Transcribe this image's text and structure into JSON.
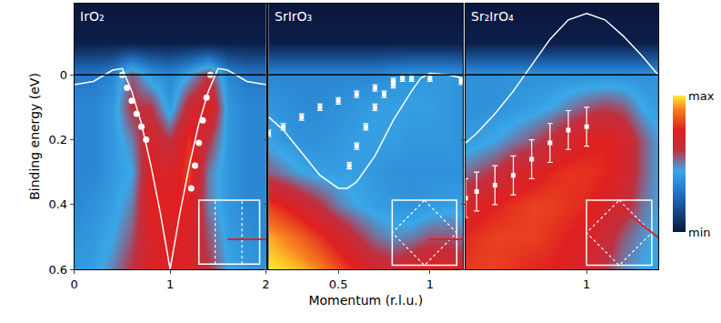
{
  "chart_data": [
    {
      "type": "heatmap",
      "title": "IrO₂",
      "ylabel": "Binding energy (eV)",
      "xlim": [
        0,
        2
      ],
      "xticks": [
        0,
        1,
        2
      ],
      "ylim": [
        0.6,
        -0.22
      ],
      "yticks": [
        0,
        0.2,
        0.4,
        0.6
      ],
      "hline": 0,
      "zlim": [
        0,
        1
      ],
      "heatmap": {
        "x": [
          0,
          0.2,
          0.4,
          0.6,
          0.8,
          1.0,
          1.2,
          1.4,
          1.6,
          1.8,
          2.0
        ],
        "y": [
          -0.2,
          -0.1,
          0,
          0.1,
          0.2,
          0.3,
          0.4,
          0.5,
          0.6
        ],
        "z": [
          [
            0,
            0,
            0,
            0,
            0,
            0,
            0,
            0,
            0,
            0,
            0
          ],
          [
            0.02,
            0.02,
            0.02,
            0.02,
            0.02,
            0.02,
            0.02,
            0.02,
            0.02,
            0.02,
            0.02
          ],
          [
            0.3,
            0.3,
            0.35,
            0.55,
            0.4,
            0.35,
            0.45,
            0.6,
            0.35,
            0.3,
            0.3
          ],
          [
            0.35,
            0.35,
            0.4,
            0.6,
            0.6,
            0.4,
            0.65,
            0.75,
            0.4,
            0.35,
            0.35
          ],
          [
            0.35,
            0.35,
            0.4,
            0.5,
            0.7,
            0.6,
            0.78,
            0.6,
            0.4,
            0.35,
            0.35
          ],
          [
            0.35,
            0.35,
            0.4,
            0.45,
            0.72,
            0.7,
            0.8,
            0.5,
            0.4,
            0.35,
            0.35
          ],
          [
            0.35,
            0.38,
            0.42,
            0.5,
            0.75,
            0.75,
            0.75,
            0.5,
            0.4,
            0.35,
            0.35
          ],
          [
            0.38,
            0.4,
            0.45,
            0.55,
            0.72,
            0.72,
            0.72,
            0.55,
            0.42,
            0.38,
            0.35
          ],
          [
            0.4,
            0.42,
            0.5,
            0.6,
            0.72,
            0.72,
            0.72,
            0.6,
            0.45,
            0.4,
            0.38
          ]
        ]
      },
      "series": [
        {
          "type": "line",
          "line_style": "solid",
          "color": "#ffffff",
          "x": [
            0,
            0.2,
            0.4,
            0.5,
            0.6,
            0.7,
            0.8,
            0.9,
            1.0,
            1.1,
            1.2,
            1.3,
            1.4,
            1.5,
            1.6,
            1.8,
            2.0
          ],
          "values": [
            0.03,
            0.02,
            -0.015,
            -0.02,
            0.05,
            0.15,
            0.28,
            0.43,
            0.6,
            0.43,
            0.28,
            0.15,
            0.05,
            -0.02,
            -0.015,
            0.02,
            0.03
          ]
        },
        {
          "type": "scatter",
          "marker": "circle",
          "color": "#ffffff",
          "x": [
            0.5,
            0.55,
            0.6,
            0.65,
            0.7,
            0.75
          ],
          "values": [
            0,
            0.04,
            0.08,
            0.12,
            0.16,
            0.2
          ]
        },
        {
          "type": "scatter",
          "marker": "circle",
          "color": "#ffffff",
          "x": [
            1.22,
            1.26,
            1.3,
            1.34,
            1.38,
            1.42
          ],
          "values": [
            0.35,
            0.28,
            0.21,
            0.14,
            0.07,
            0
          ]
        }
      ]
    },
    {
      "type": "heatmap",
      "title": "SrIrO₃",
      "xlabel": "Momentum (r.l.u.)",
      "tick_labels": "x",
      "xlim": [
        0.12,
        1.18
      ],
      "xticks": [
        0.5,
        1
      ],
      "ylim": [
        0.6,
        -0.22
      ],
      "yticks": [
        0,
        0.2,
        0.4,
        0.6
      ],
      "hline": 0,
      "zlim": [
        0,
        1
      ],
      "heatmap": {
        "x": [
          0.1,
          0.2,
          0.3,
          0.4,
          0.5,
          0.6,
          0.7,
          0.8,
          0.9,
          1.0,
          1.1,
          1.2
        ],
        "y": [
          -0.2,
          -0.1,
          0,
          0.1,
          0.2,
          0.3,
          0.4,
          0.5,
          0.6
        ],
        "z": [
          [
            0,
            0,
            0,
            0,
            0,
            0,
            0,
            0,
            0,
            0,
            0,
            0
          ],
          [
            0.02,
            0.02,
            0.02,
            0.02,
            0.02,
            0.02,
            0.02,
            0.02,
            0.02,
            0.02,
            0.02,
            0.02
          ],
          [
            0.35,
            0.35,
            0.35,
            0.35,
            0.35,
            0.35,
            0.35,
            0.38,
            0.4,
            0.4,
            0.4,
            0.38
          ],
          [
            0.4,
            0.38,
            0.36,
            0.36,
            0.38,
            0.4,
            0.42,
            0.42,
            0.42,
            0.42,
            0.4,
            0.38
          ],
          [
            0.45,
            0.4,
            0.38,
            0.38,
            0.4,
            0.42,
            0.42,
            0.42,
            0.4,
            0.4,
            0.4,
            0.38
          ],
          [
            0.55,
            0.5,
            0.45,
            0.42,
            0.42,
            0.42,
            0.4,
            0.38,
            0.38,
            0.38,
            0.38,
            0.38
          ],
          [
            0.8,
            0.75,
            0.68,
            0.6,
            0.5,
            0.45,
            0.42,
            0.4,
            0.38,
            0.4,
            0.42,
            0.42
          ],
          [
            0.95,
            0.9,
            0.85,
            0.78,
            0.7,
            0.6,
            0.52,
            0.48,
            0.5,
            0.55,
            0.55,
            0.5
          ],
          [
            1,
            0.98,
            0.95,
            0.9,
            0.82,
            0.75,
            0.68,
            0.65,
            0.7,
            0.75,
            0.72,
            0.65
          ]
        ]
      },
      "series": [
        {
          "type": "line",
          "line_style": "solid",
          "color": "#ffffff",
          "x": [
            0.12,
            0.2,
            0.3,
            0.4,
            0.5,
            0.55,
            0.6,
            0.7,
            0.8,
            0.9,
            0.95,
            1.0,
            1.1,
            1.18
          ],
          "values": [
            0.13,
            0.17,
            0.24,
            0.31,
            0.35,
            0.35,
            0.33,
            0.25,
            0.14,
            0.05,
            0.01,
            -0.005,
            0,
            0.01
          ]
        },
        {
          "type": "scatter",
          "marker": "square",
          "color": "#ffffff",
          "x": [
            0.12,
            0.2,
            0.3,
            0.4,
            0.5,
            0.6,
            0.7,
            0.8,
            0.9,
            1.0,
            1.17
          ],
          "values": [
            0.18,
            0.16,
            0.13,
            0.1,
            0.08,
            0.06,
            0.04,
            0.02,
            0.01,
            0.01,
            0.02
          ],
          "error": [
            0.01,
            0.01,
            0.01,
            0.01,
            0.01,
            0.01,
            0.01,
            0.01,
            0.01,
            0.01,
            0.01
          ]
        },
        {
          "type": "scatter",
          "marker": "square",
          "color": "#ffffff",
          "x": [
            0.56,
            0.6,
            0.65,
            0.7,
            0.75,
            0.8,
            0.85
          ],
          "values": [
            0.28,
            0.22,
            0.16,
            0.1,
            0.06,
            0.03,
            0.01
          ],
          "error": [
            0.01,
            0.01,
            0.01,
            0.01,
            0.01,
            0.01,
            0.01
          ]
        }
      ]
    },
    {
      "type": "heatmap",
      "title": "Sr₂IrO₄",
      "tick_labels": "x",
      "xlim": [
        0.34,
        1.39
      ],
      "xticks": [
        1
      ],
      "ylim": [
        0.6,
        -0.22
      ],
      "yticks": [
        0,
        0.2,
        0.4,
        0.6
      ],
      "hline": 0,
      "zlim": [
        0,
        1
      ],
      "colorbar": {
        "ticks": [
          {
            "value": 1,
            "label": "max"
          },
          {
            "value": 0,
            "label": "min"
          }
        ]
      },
      "heatmap": {
        "x": [
          0.3,
          0.4,
          0.5,
          0.6,
          0.7,
          0.8,
          0.9,
          1.0,
          1.1,
          1.2,
          1.3,
          1.4
        ],
        "y": [
          -0.2,
          -0.1,
          0,
          0.1,
          0.2,
          0.3,
          0.4,
          0.5,
          0.6
        ],
        "z": [
          [
            0,
            0,
            0,
            0,
            0,
            0,
            0,
            0,
            0,
            0,
            0,
            0
          ],
          [
            0.02,
            0.02,
            0.02,
            0.02,
            0.02,
            0.02,
            0.02,
            0.02,
            0.02,
            0.02,
            0.02,
            0.02
          ],
          [
            0.38,
            0.38,
            0.38,
            0.38,
            0.38,
            0.38,
            0.38,
            0.38,
            0.38,
            0.38,
            0.38,
            0.38
          ],
          [
            0.38,
            0.38,
            0.38,
            0.4,
            0.42,
            0.45,
            0.5,
            0.55,
            0.58,
            0.55,
            0.45,
            0.4
          ],
          [
            0.4,
            0.42,
            0.45,
            0.5,
            0.55,
            0.62,
            0.7,
            0.74,
            0.75,
            0.7,
            0.55,
            0.45
          ],
          [
            0.5,
            0.55,
            0.6,
            0.68,
            0.72,
            0.76,
            0.78,
            0.78,
            0.76,
            0.7,
            0.55,
            0.45
          ],
          [
            0.68,
            0.72,
            0.75,
            0.78,
            0.8,
            0.8,
            0.78,
            0.76,
            0.72,
            0.65,
            0.52,
            0.45
          ],
          [
            0.75,
            0.78,
            0.8,
            0.8,
            0.8,
            0.78,
            0.75,
            0.72,
            0.65,
            0.55,
            0.48,
            0.42
          ],
          [
            0.78,
            0.8,
            0.8,
            0.78,
            0.76,
            0.75,
            0.72,
            0.68,
            0.6,
            0.5,
            0.45,
            0.42
          ]
        ]
      },
      "series": [
        {
          "type": "line",
          "line_style": "solid",
          "color": "#ffffff",
          "x": [
            0.34,
            0.4,
            0.5,
            0.6,
            0.7,
            0.8,
            0.9,
            1.0,
            1.1,
            1.2,
            1.3,
            1.39
          ],
          "values": [
            0.21,
            0.18,
            0.12,
            0.05,
            -0.03,
            -0.11,
            -0.17,
            -0.19,
            -0.17,
            -0.12,
            -0.06,
            0
          ]
        },
        {
          "type": "scatter",
          "marker": "square",
          "color": "#ffffff",
          "x": [
            0.34,
            0.4,
            0.5,
            0.6,
            0.7,
            0.8,
            0.9,
            1.0
          ],
          "values": [
            0.38,
            0.36,
            0.34,
            0.31,
            0.26,
            0.21,
            0.17,
            0.16
          ],
          "error": [
            0.06,
            0.06,
            0.06,
            0.06,
            0.06,
            0.06,
            0.06,
            0.06
          ]
        }
      ]
    }
  ]
}
